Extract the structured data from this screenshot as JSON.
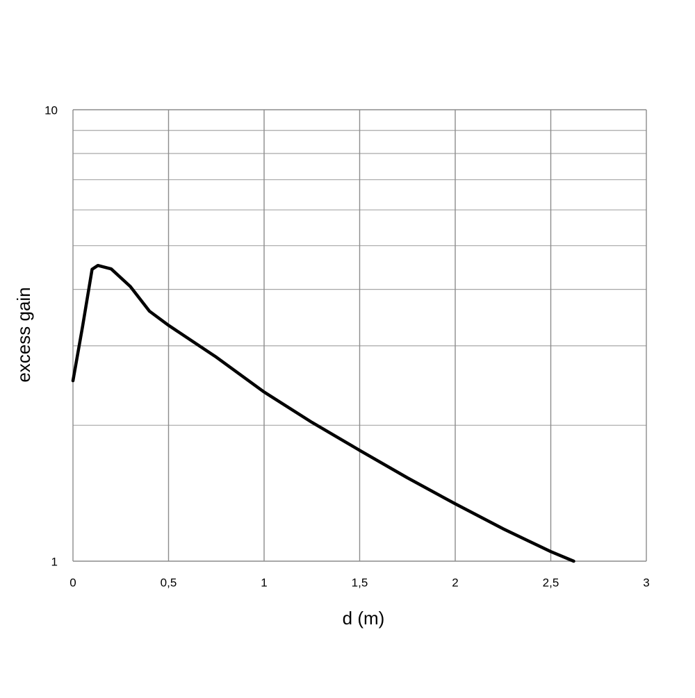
{
  "chart_data": {
    "type": "line",
    "xlabel": "d (m)",
    "ylabel": "excess gain",
    "x": [
      0,
      0.05,
      0.1,
      0.13,
      0.2,
      0.3,
      0.4,
      0.5,
      0.75,
      1,
      1.25,
      1.5,
      1.75,
      2,
      2.25,
      2.5,
      2.62
    ],
    "series": [
      {
        "color": "#000000",
        "values": [
          2.51,
          3.31,
          4.43,
          4.52,
          4.44,
          4.06,
          3.58,
          3.33,
          2.83,
          2.37,
          2.03,
          1.76,
          1.53,
          1.34,
          1.18,
          1.05,
          1.0
        ]
      }
    ],
    "xlim": [
      0,
      3
    ],
    "xticks": [
      0,
      {
        "value": 0.5,
        "label": "0,5"
      },
      1,
      {
        "value": 1.5,
        "label": "1,5"
      },
      2,
      {
        "value": 2.5,
        "label": "2,5"
      },
      3
    ],
    "ylim": [
      1,
      10
    ],
    "yticks": [
      1,
      10
    ],
    "yminor": [
      2,
      3,
      4,
      5,
      6,
      7,
      8,
      9
    ],
    "ylog": true,
    "grid": true
  }
}
